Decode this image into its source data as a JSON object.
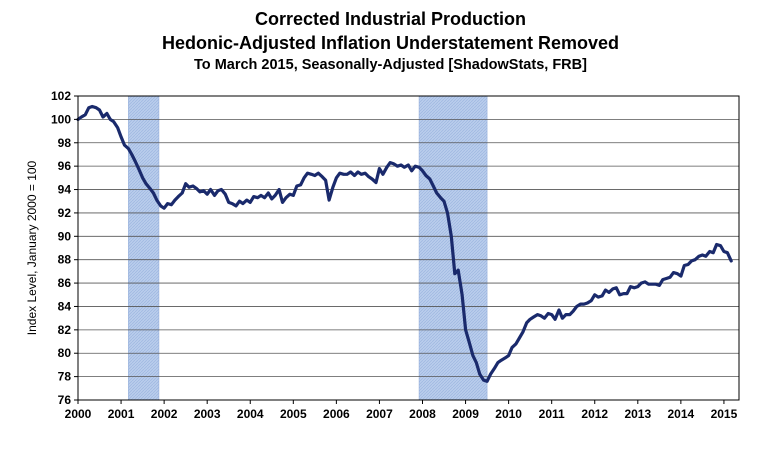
{
  "chart_data": {
    "type": "line",
    "title": "Corrected Industrial Production",
    "subtitle": "Hedonic-Adjusted Inflation Understatement Removed",
    "subtitle2": "To March 2015, Seasonally-Adjusted [ShadowStats, FRB]",
    "xlabel": "",
    "ylabel": "Index Level, January 2000 = 100",
    "xlim": [
      2000.0,
      2015.35
    ],
    "ylim": [
      76,
      102
    ],
    "x_ticks": [
      2000,
      2001,
      2002,
      2003,
      2004,
      2005,
      2006,
      2007,
      2008,
      2009,
      2010,
      2011,
      2012,
      2013,
      2014,
      2015
    ],
    "y_ticks": [
      76,
      78,
      80,
      82,
      84,
      86,
      88,
      90,
      92,
      94,
      96,
      98,
      100,
      102
    ],
    "grid": true,
    "recessions": [
      {
        "start": 2001.17,
        "end": 2001.88
      },
      {
        "start": 2007.92,
        "end": 2009.5
      }
    ],
    "series": [
      {
        "color": "#1a2a6c",
        "points": [
          [
            2000.0,
            100.0
          ],
          [
            2000.08,
            100.2
          ],
          [
            2000.17,
            100.4
          ],
          [
            2000.25,
            101.0
          ],
          [
            2000.33,
            101.1
          ],
          [
            2000.42,
            101.0
          ],
          [
            2000.5,
            100.8
          ],
          [
            2000.58,
            100.2
          ],
          [
            2000.67,
            100.5
          ],
          [
            2000.75,
            100.0
          ],
          [
            2000.83,
            99.8
          ],
          [
            2000.92,
            99.3
          ],
          [
            2001.0,
            98.5
          ],
          [
            2001.08,
            97.8
          ],
          [
            2001.17,
            97.5
          ],
          [
            2001.25,
            97.0
          ],
          [
            2001.33,
            96.4
          ],
          [
            2001.42,
            95.7
          ],
          [
            2001.5,
            95.0
          ],
          [
            2001.58,
            94.5
          ],
          [
            2001.67,
            94.1
          ],
          [
            2001.75,
            93.7
          ],
          [
            2001.83,
            93.1
          ],
          [
            2001.92,
            92.6
          ],
          [
            2002.0,
            92.4
          ],
          [
            2002.08,
            92.8
          ],
          [
            2002.17,
            92.7
          ],
          [
            2002.25,
            93.1
          ],
          [
            2002.33,
            93.4
          ],
          [
            2002.42,
            93.7
          ],
          [
            2002.5,
            94.5
          ],
          [
            2002.58,
            94.2
          ],
          [
            2002.67,
            94.3
          ],
          [
            2002.75,
            94.1
          ],
          [
            2002.83,
            93.8
          ],
          [
            2002.92,
            93.9
          ],
          [
            2003.0,
            93.6
          ],
          [
            2003.08,
            94.0
          ],
          [
            2003.17,
            93.5
          ],
          [
            2003.25,
            93.9
          ],
          [
            2003.33,
            94.0
          ],
          [
            2003.42,
            93.6
          ],
          [
            2003.5,
            92.9
          ],
          [
            2003.58,
            92.8
          ],
          [
            2003.67,
            92.6
          ],
          [
            2003.75,
            93.0
          ],
          [
            2003.83,
            92.8
          ],
          [
            2003.92,
            93.1
          ],
          [
            2004.0,
            92.9
          ],
          [
            2004.08,
            93.4
          ],
          [
            2004.17,
            93.3
          ],
          [
            2004.25,
            93.5
          ],
          [
            2004.33,
            93.3
          ],
          [
            2004.42,
            93.7
          ],
          [
            2004.5,
            93.2
          ],
          [
            2004.58,
            93.5
          ],
          [
            2004.67,
            94.0
          ],
          [
            2004.75,
            92.9
          ],
          [
            2004.83,
            93.3
          ],
          [
            2004.92,
            93.6
          ],
          [
            2005.0,
            93.5
          ],
          [
            2005.08,
            94.3
          ],
          [
            2005.17,
            94.4
          ],
          [
            2005.25,
            95.0
          ],
          [
            2005.33,
            95.4
          ],
          [
            2005.42,
            95.3
          ],
          [
            2005.5,
            95.2
          ],
          [
            2005.58,
            95.4
          ],
          [
            2005.67,
            95.1
          ],
          [
            2005.75,
            94.8
          ],
          [
            2005.83,
            93.1
          ],
          [
            2005.92,
            94.2
          ],
          [
            2006.0,
            95.0
          ],
          [
            2006.08,
            95.4
          ],
          [
            2006.17,
            95.3
          ],
          [
            2006.25,
            95.3
          ],
          [
            2006.33,
            95.5
          ],
          [
            2006.42,
            95.2
          ],
          [
            2006.5,
            95.5
          ],
          [
            2006.58,
            95.3
          ],
          [
            2006.67,
            95.4
          ],
          [
            2006.75,
            95.1
          ],
          [
            2006.83,
            94.9
          ],
          [
            2006.92,
            94.6
          ],
          [
            2007.0,
            95.8
          ],
          [
            2007.08,
            95.3
          ],
          [
            2007.17,
            95.9
          ],
          [
            2007.25,
            96.3
          ],
          [
            2007.33,
            96.2
          ],
          [
            2007.42,
            96.0
          ],
          [
            2007.5,
            96.1
          ],
          [
            2007.58,
            95.9
          ],
          [
            2007.67,
            96.1
          ],
          [
            2007.75,
            95.6
          ],
          [
            2007.83,
            96.0
          ],
          [
            2007.92,
            95.9
          ],
          [
            2008.0,
            95.6
          ],
          [
            2008.08,
            95.2
          ],
          [
            2008.17,
            94.9
          ],
          [
            2008.25,
            94.3
          ],
          [
            2008.33,
            93.7
          ],
          [
            2008.42,
            93.3
          ],
          [
            2008.5,
            93.0
          ],
          [
            2008.58,
            92.0
          ],
          [
            2008.67,
            90.0
          ],
          [
            2008.75,
            86.8
          ],
          [
            2008.83,
            87.1
          ],
          [
            2008.92,
            85.0
          ],
          [
            2009.0,
            82.0
          ],
          [
            2009.08,
            81.0
          ],
          [
            2009.17,
            79.8
          ],
          [
            2009.25,
            79.2
          ],
          [
            2009.33,
            78.2
          ],
          [
            2009.42,
            77.7
          ],
          [
            2009.5,
            77.6
          ],
          [
            2009.58,
            78.2
          ],
          [
            2009.67,
            78.7
          ],
          [
            2009.75,
            79.2
          ],
          [
            2009.83,
            79.4
          ],
          [
            2009.92,
            79.6
          ],
          [
            2010.0,
            79.8
          ],
          [
            2010.08,
            80.5
          ],
          [
            2010.17,
            80.8
          ],
          [
            2010.25,
            81.3
          ],
          [
            2010.33,
            81.8
          ],
          [
            2010.42,
            82.6
          ],
          [
            2010.5,
            82.9
          ],
          [
            2010.58,
            83.1
          ],
          [
            2010.67,
            83.3
          ],
          [
            2010.75,
            83.2
          ],
          [
            2010.83,
            83.0
          ],
          [
            2010.92,
            83.4
          ],
          [
            2011.0,
            83.3
          ],
          [
            2011.08,
            82.9
          ],
          [
            2011.17,
            83.7
          ],
          [
            2011.25,
            83.0
          ],
          [
            2011.33,
            83.3
          ],
          [
            2011.42,
            83.3
          ],
          [
            2011.5,
            83.6
          ],
          [
            2011.58,
            84.0
          ],
          [
            2011.67,
            84.2
          ],
          [
            2011.75,
            84.2
          ],
          [
            2011.83,
            84.3
          ],
          [
            2011.92,
            84.5
          ],
          [
            2012.0,
            85.0
          ],
          [
            2012.08,
            84.8
          ],
          [
            2012.17,
            84.9
          ],
          [
            2012.25,
            85.4
          ],
          [
            2012.33,
            85.2
          ],
          [
            2012.42,
            85.5
          ],
          [
            2012.5,
            85.6
          ],
          [
            2012.58,
            85.0
          ],
          [
            2012.67,
            85.1
          ],
          [
            2012.75,
            85.1
          ],
          [
            2012.83,
            85.7
          ],
          [
            2012.92,
            85.6
          ],
          [
            2013.0,
            85.7
          ],
          [
            2013.08,
            86.0
          ],
          [
            2013.17,
            86.1
          ],
          [
            2013.25,
            85.9
          ],
          [
            2013.33,
            85.9
          ],
          [
            2013.42,
            85.9
          ],
          [
            2013.5,
            85.8
          ],
          [
            2013.58,
            86.3
          ],
          [
            2013.67,
            86.4
          ],
          [
            2013.75,
            86.5
          ],
          [
            2013.83,
            86.9
          ],
          [
            2013.92,
            86.8
          ],
          [
            2014.0,
            86.6
          ],
          [
            2014.08,
            87.5
          ],
          [
            2014.17,
            87.6
          ],
          [
            2014.25,
            87.9
          ],
          [
            2014.33,
            88.0
          ],
          [
            2014.42,
            88.3
          ],
          [
            2014.5,
            88.4
          ],
          [
            2014.58,
            88.3
          ],
          [
            2014.67,
            88.7
          ],
          [
            2014.75,
            88.6
          ],
          [
            2014.83,
            89.3
          ],
          [
            2014.92,
            89.2
          ],
          [
            2015.0,
            88.7
          ],
          [
            2015.08,
            88.6
          ],
          [
            2015.17,
            87.9
          ]
        ]
      }
    ]
  }
}
